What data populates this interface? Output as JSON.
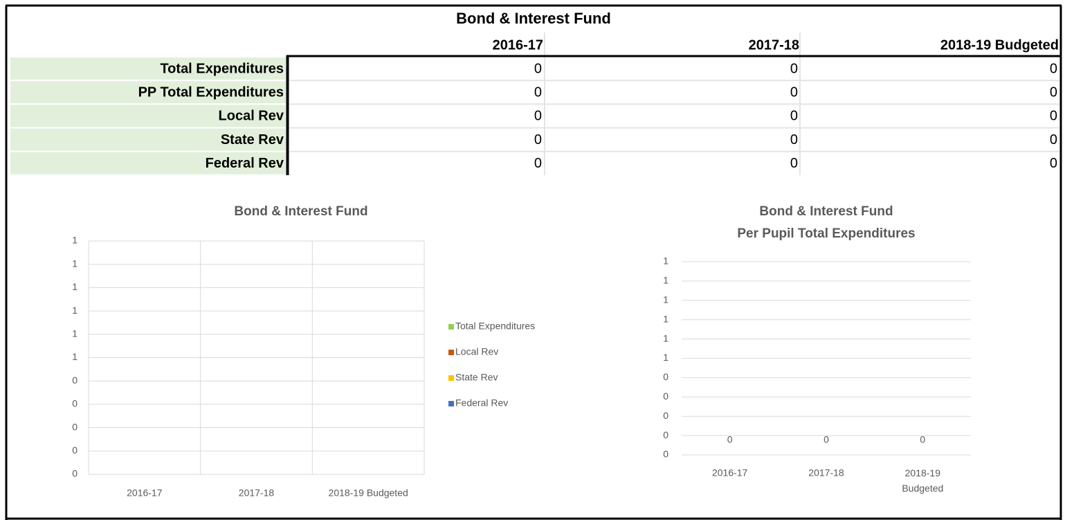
{
  "table": {
    "title": "Bond & Interest Fund",
    "columns": [
      "2016-17",
      "2017-18",
      "2018-19 Budgeted"
    ],
    "rows": [
      {
        "label": "Total Expenditures",
        "values": [
          0,
          0,
          0
        ]
      },
      {
        "label": "PP Total Expenditures",
        "values": [
          0,
          0,
          0
        ]
      },
      {
        "label": "Local Rev",
        "values": [
          0,
          0,
          0
        ]
      },
      {
        "label": "State Rev",
        "values": [
          0,
          0,
          0
        ]
      },
      {
        "label": "Federal Rev",
        "values": [
          0,
          0,
          0
        ]
      }
    ]
  },
  "chart_data": [
    {
      "type": "bar",
      "title": "Bond & Interest Fund",
      "categories": [
        "2016-17",
        "2017-18",
        "2018-19 Budgeted"
      ],
      "series": [
        {
          "name": "Total Expenditures",
          "color": "#92d050",
          "values": [
            0,
            0,
            0
          ]
        },
        {
          "name": "Local Rev",
          "color": "#c55a11",
          "values": [
            0,
            0,
            0
          ]
        },
        {
          "name": "State Rev",
          "color": "#ffc000",
          "values": [
            0,
            0,
            0
          ]
        },
        {
          "name": "Federal Rev",
          "color": "#4472c4",
          "values": [
            0,
            0,
            0
          ]
        }
      ],
      "ylim": [
        0,
        1
      ],
      "yticks": [
        0,
        {
          "value": 0.1,
          "label": "0"
        },
        {
          "value": 0.2,
          "label": "0"
        },
        {
          "value": 0.3,
          "label": "0"
        },
        {
          "value": 0.4,
          "label": "0"
        },
        {
          "value": 0.5,
          "label": "1"
        },
        {
          "value": 0.6,
          "label": "1"
        },
        {
          "value": 0.7,
          "label": "1"
        },
        {
          "value": 0.8,
          "label": "1"
        },
        {
          "value": 0.9,
          "label": "1"
        },
        1
      ],
      "grid": true,
      "xgrid": true,
      "legend": "right"
    },
    {
      "type": "bar",
      "title": "Bond & Interest Fund",
      "subtitle": "Per Pupil Total Expenditures",
      "categories": [
        "2016-17",
        "2017-18",
        "2018-19 Budgeted"
      ],
      "values": [
        0,
        0,
        0
      ],
      "data_labels": true,
      "ylim": [
        0,
        1
      ],
      "yticks": [
        0,
        {
          "value": 0.1,
          "label": "0"
        },
        {
          "value": 0.2,
          "label": "0"
        },
        {
          "value": 0.3,
          "label": "0"
        },
        {
          "value": 0.4,
          "label": "0"
        },
        {
          "value": 0.5,
          "label": "1"
        },
        {
          "value": 0.6,
          "label": "1"
        },
        {
          "value": 0.7,
          "label": "1"
        },
        {
          "value": 0.8,
          "label": "1"
        },
        {
          "value": 0.9,
          "label": "1"
        },
        1
      ],
      "grid": true
    }
  ]
}
